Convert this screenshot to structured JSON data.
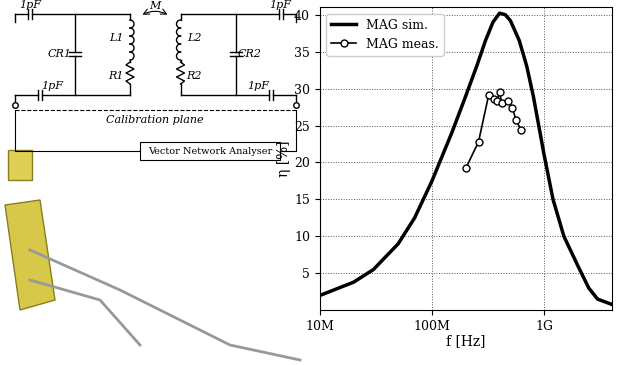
{
  "chart_data": {
    "type": "line",
    "x_label": "f [Hz]",
    "y_label": "η [%]",
    "log": "x",
    "grid": true,
    "legend": "upper left",
    "xlim": [
      10000000,
      4000000000
    ],
    "xticks": [
      {
        "value": 10000000,
        "label": "10M"
      },
      {
        "value": 100000000,
        "label": "100M"
      },
      {
        "value": 1000000000,
        "label": "1G"
      }
    ],
    "ylim": [
      0,
      41
    ],
    "yticks": [
      5,
      10,
      15,
      20,
      25,
      30,
      35,
      40
    ],
    "series": [
      {
        "name": "MAG sim.",
        "color": "#000000",
        "marker": "none",
        "line_style": "solid",
        "x": [
          10000000,
          20000000,
          30000000,
          50000000,
          70000000,
          100000000,
          150000000,
          200000000,
          250000000,
          300000000,
          350000000,
          400000000,
          450000000,
          500000000,
          600000000,
          700000000,
          800000000,
          1000000000,
          1200000000,
          1500000000,
          2000000000,
          2500000000,
          3000000000,
          4000000000
        ],
        "values": [
          2.0,
          3.8,
          5.5,
          9.0,
          12.5,
          17.5,
          24.0,
          29.0,
          33.0,
          36.5,
          39.0,
          40.2,
          40.0,
          39.2,
          36.5,
          33.0,
          29.0,
          21.0,
          15.0,
          10.0,
          6.0,
          3.0,
          1.5,
          0.8
        ]
      },
      {
        "name": "MAG meas.",
        "color": "#000000",
        "marker": "o",
        "line_style": "solid",
        "x": [
          200000000,
          260000000,
          320000000,
          360000000,
          380000000,
          400000000,
          420000000,
          480000000,
          520000000,
          560000000,
          620000000
        ],
        "values": [
          19.2,
          22.8,
          29.1,
          28.6,
          28.3,
          29.5,
          28.0,
          28.3,
          27.4,
          25.8,
          24.4
        ]
      }
    ]
  },
  "diagram": {
    "labels": {
      "c_top_left": "1pF",
      "c_top_right": "1pF",
      "c_bottom_left": "1pF",
      "c_bottom_right": "1pF",
      "mutual": "M",
      "l1": "L1",
      "l2": "L2",
      "r1": "R1",
      "r2": "R2",
      "cr1": "CR1",
      "cr2": "CR2"
    },
    "calibration": "Calibration plane",
    "instrument": "Vector Network Analyser"
  }
}
